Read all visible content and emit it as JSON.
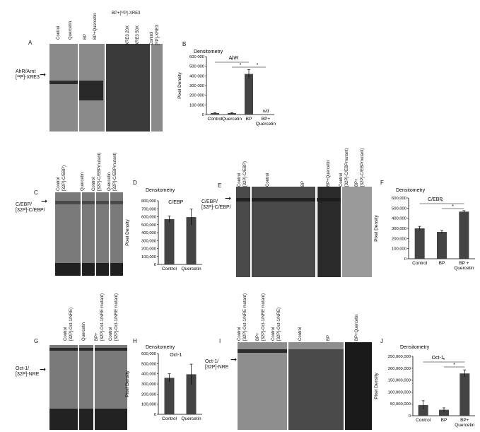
{
  "panels": {
    "A": {
      "letter": "A",
      "side_label_1": "AhR/Arnt",
      "side_label_2": "[³²P]-XRE3",
      "lanes": [
        "Control",
        "Quercetin",
        "BP",
        "BP+Quercetin",
        "XRE3 20X",
        "XRE3 50X",
        "Control",
        "[³²P]-XRE3"
      ],
      "bracket_label": "BP+[³²P]-XRE3"
    },
    "C": {
      "letter": "C",
      "side_label_1": "C/EBP/",
      "side_label_2": "[32P]-C/EBP/",
      "lanes": [
        "Control",
        "[32P]-C/EBP)",
        "Quercetin",
        "Control",
        "[32P]-C/EBPmutant)",
        "Quercetin",
        "[32P]-C/EBPmutant)"
      ]
    },
    "E": {
      "letter": "E",
      "side_label_1": "C/EBP/",
      "side_label_2": "[32P]-C/EBP/",
      "lanes": [
        "Control",
        "[32P]-C/EBP)",
        "Control",
        "BP",
        "BP+Quercetin",
        "Control",
        "[32P]-C/EBPmutant)",
        "BP+",
        "[32P]-C/EBPmutant)"
      ]
    },
    "G": {
      "letter": "G",
      "side_label_1": "Oct-1/",
      "side_label_2": "[32P]-NRE",
      "lanes": [
        "Control",
        "[32P]-Oct-1/NRE)",
        "Quercetin",
        "BP+",
        "[32P]-Oct-1/NRE mutant)",
        "Control",
        "[32P]-Oct-1/NRE mutant)"
      ]
    },
    "I": {
      "letter": "I",
      "side_label_1": "Oct-1/",
      "side_label_2": "[32P]-NRE",
      "lanes": [
        "Control",
        "[32P]-Oct-1/NRE mutant)",
        "BP+",
        "[32P]-Oct-1/NRE mutant)",
        "Control",
        "[32P]-Oct-1/NRE)",
        "Control",
        "BP",
        "BP+Quercetin"
      ]
    }
  },
  "chart_data": [
    {
      "panel": "B",
      "type": "bar",
      "title": "Densitometry",
      "chart_label": "AhR",
      "ylabel": "Pixel Density",
      "categories": [
        "Control",
        "Quercetin",
        "BP",
        "BP+ Quercetin"
      ],
      "values": [
        15,
        15,
        420,
        null
      ],
      "errors": [
        5,
        5,
        45,
        0
      ],
      "na_label": "n/d",
      "ylim": [
        0,
        600000
      ],
      "yticks": [
        "0",
        "100 000",
        "200 000",
        "300 000",
        "400 000",
        "500 000",
        "600 000"
      ],
      "yscale": 1000,
      "bar_color": "#444444",
      "sig": "*"
    },
    {
      "panel": "D",
      "type": "bar",
      "title": "Densitometry",
      "chart_label": "C/EBP",
      "ylabel": "Pixel Density",
      "categories": [
        "Control",
        "Quercetin"
      ],
      "values": [
        570000,
        595000
      ],
      "errors": [
        40000,
        100000
      ],
      "ylim": [
        0,
        800000
      ],
      "yticks": [
        "0",
        "100,000",
        "200,000",
        "300,000",
        "400,000",
        "500,000",
        "600,000",
        "700,000",
        "800,000"
      ],
      "bar_color": "#444444"
    },
    {
      "panel": "F",
      "type": "bar",
      "title": "Densitometry",
      "chart_label": "C/EBP",
      "ylabel": "Pixel Density",
      "categories": [
        "Control",
        "BP",
        "BP + Quercetin"
      ],
      "values": [
        300000,
        265000,
        465000
      ],
      "errors": [
        20000,
        15000,
        10000
      ],
      "ylim": [
        0,
        600000
      ],
      "yticks": [
        "0",
        "100,000",
        "200,000",
        "300,000",
        "400,000",
        "500,000",
        "600,000"
      ],
      "bar_color": "#444444",
      "sig": "*"
    },
    {
      "panel": "H",
      "type": "bar",
      "title": "Densitometry",
      "chart_label": "Oct-1",
      "ylabel": "Pixel Density",
      "categories": [
        "Control",
        "Quercetin"
      ],
      "values": [
        360000,
        395000
      ],
      "errors": [
        40000,
        100000
      ],
      "ylim": [
        0,
        600000
      ],
      "yticks": [
        "0",
        "100,000",
        "200,000",
        "300,000",
        "400,000",
        "500,000",
        "600,000"
      ],
      "bar_color": "#444444"
    },
    {
      "panel": "J",
      "type": "bar",
      "title": "Densitometry",
      "chart_label": "Oct-1",
      "ylabel": "Pixel Density",
      "categories": [
        "Control",
        "BP",
        "BP+ Quercetin"
      ],
      "values": [
        45000000,
        25000000,
        178000000
      ],
      "errors": [
        18000000,
        8000000,
        15000000
      ],
      "ylim": [
        0,
        250000000
      ],
      "yticks": [
        "0",
        "50,000,000",
        "100,000,000",
        "150,000,000",
        "200,000,000",
        "250,000,000"
      ],
      "bar_color": "#444444",
      "sig": "*"
    }
  ],
  "chart_letters": {
    "B": "B",
    "D": "D",
    "F": "F",
    "H": "H",
    "J": "J"
  }
}
